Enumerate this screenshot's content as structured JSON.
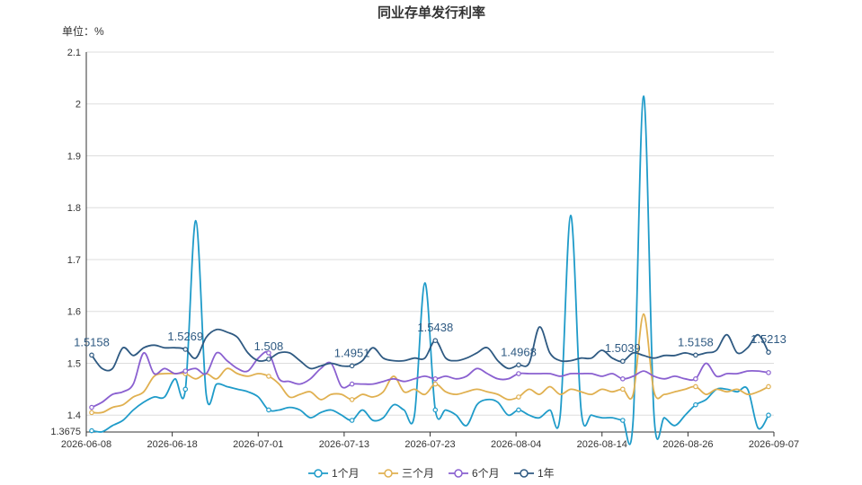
{
  "chart_data": {
    "type": "line",
    "title": "同业存单发行利率",
    "unit_label": "单位：%",
    "ylim": [
      1.3675,
      2.1
    ],
    "y_ticks": [
      1.4,
      1.5,
      1.6,
      1.7,
      1.8,
      1.9,
      2,
      2.1
    ],
    "y_tick_labels": [
      "1.4",
      "1.5",
      "1.6",
      "1.7",
      "1.8",
      "1.9",
      "2",
      "2.1"
    ],
    "y_min_label": "1.3675",
    "grid": true,
    "legend_position": "bottom",
    "x_tick_labels": [
      "2026-06-08",
      "2026-06-18",
      "2026-07-01",
      "2026-07-13",
      "2026-07-23",
      "2026-08-04",
      "2026-08-14",
      "2026-08-26",
      "2026-09-07"
    ],
    "n_points": 66,
    "series": [
      {
        "name": "1个月",
        "color": "#1f9bc9",
        "values": [
          1.37,
          1.368,
          1.38,
          1.39,
          1.41,
          1.425,
          1.435,
          1.435,
          1.47,
          1.45,
          1.775,
          1.44,
          1.46,
          1.455,
          1.45,
          1.445,
          1.435,
          1.41,
          1.41,
          1.415,
          1.41,
          1.395,
          1.405,
          1.41,
          1.4,
          1.39,
          1.41,
          1.39,
          1.395,
          1.42,
          1.41,
          1.4,
          1.655,
          1.41,
          1.41,
          1.4,
          1.38,
          1.42,
          1.43,
          1.425,
          1.4,
          1.41,
          1.4,
          1.395,
          1.41,
          1.4,
          1.785,
          1.41,
          1.4,
          1.395,
          1.395,
          1.39,
          1.39,
          2.015,
          1.4,
          1.395,
          1.38,
          1.4,
          1.42,
          1.43,
          1.45,
          1.45,
          1.445,
          1.45,
          1.375,
          1.4
        ]
      },
      {
        "name": "三个月",
        "color": "#e0b050",
        "values": [
          1.405,
          1.405,
          1.415,
          1.42,
          1.435,
          1.445,
          1.475,
          1.48,
          1.48,
          1.48,
          1.47,
          1.48,
          1.47,
          1.49,
          1.48,
          1.475,
          1.48,
          1.475,
          1.46,
          1.435,
          1.44,
          1.445,
          1.43,
          1.44,
          1.44,
          1.43,
          1.44,
          1.435,
          1.445,
          1.475,
          1.445,
          1.45,
          1.44,
          1.46,
          1.445,
          1.44,
          1.445,
          1.45,
          1.445,
          1.44,
          1.43,
          1.435,
          1.45,
          1.44,
          1.455,
          1.44,
          1.45,
          1.445,
          1.44,
          1.45,
          1.445,
          1.45,
          1.44,
          1.595,
          1.445,
          1.44,
          1.445,
          1.45,
          1.455,
          1.44,
          1.45,
          1.445,
          1.45,
          1.44,
          1.445,
          1.455
        ]
      },
      {
        "name": "6个月",
        "color": "#8a60d0",
        "values": [
          1.415,
          1.425,
          1.44,
          1.445,
          1.46,
          1.52,
          1.48,
          1.49,
          1.48,
          1.485,
          1.49,
          1.48,
          1.52,
          1.505,
          1.49,
          1.485,
          1.51,
          1.52,
          1.47,
          1.465,
          1.46,
          1.47,
          1.49,
          1.5,
          1.455,
          1.46,
          1.46,
          1.46,
          1.465,
          1.47,
          1.465,
          1.47,
          1.475,
          1.47,
          1.475,
          1.47,
          1.475,
          1.49,
          1.48,
          1.47,
          1.47,
          1.48,
          1.48,
          1.48,
          1.48,
          1.475,
          1.48,
          1.48,
          1.48,
          1.475,
          1.48,
          1.47,
          1.475,
          1.485,
          1.475,
          1.47,
          1.475,
          1.47,
          1.47,
          1.5,
          1.475,
          1.48,
          1.48,
          1.485,
          1.485,
          1.482
        ]
      },
      {
        "name": "1年",
        "color": "#2f5a82",
        "values": [
          1.5158,
          1.49,
          1.49,
          1.53,
          1.515,
          1.53,
          1.535,
          1.53,
          1.53,
          1.5269,
          1.51,
          1.55,
          1.565,
          1.56,
          1.55,
          1.52,
          1.505,
          1.508,
          1.52,
          1.52,
          1.505,
          1.49,
          1.495,
          1.5,
          1.495,
          1.4951,
          1.505,
          1.53,
          1.51,
          1.505,
          1.505,
          1.51,
          1.51,
          1.5438,
          1.51,
          1.505,
          1.51,
          1.52,
          1.53,
          1.505,
          1.49,
          1.4968,
          1.5,
          1.57,
          1.52,
          1.505,
          1.505,
          1.51,
          1.51,
          1.525,
          1.51,
          1.5039,
          1.52,
          1.515,
          1.51,
          1.515,
          1.515,
          1.52,
          1.5158,
          1.52,
          1.525,
          1.555,
          1.52,
          1.53,
          1.555,
          1.5213
        ]
      }
    ],
    "data_labels": [
      {
        "index": 0,
        "text": "1.5158"
      },
      {
        "index": 9,
        "text": "1.5269"
      },
      {
        "index": 17,
        "text": "1.508"
      },
      {
        "index": 25,
        "text": "1.4951"
      },
      {
        "index": 33,
        "text": "1.5438"
      },
      {
        "index": 41,
        "text": "1.4968"
      },
      {
        "index": 51,
        "text": "1.5039"
      },
      {
        "index": 58,
        "text": "1.5158"
      },
      {
        "index": 65,
        "text": "1.5213"
      }
    ]
  }
}
